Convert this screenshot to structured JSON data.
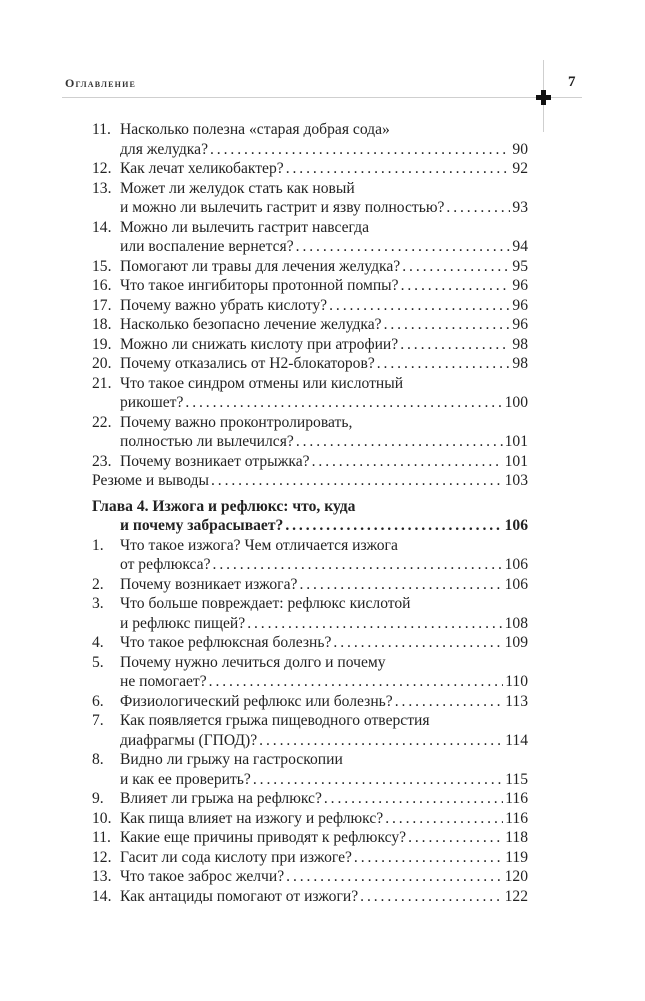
{
  "header": {
    "running_title": "Оглавление",
    "page_number": "7"
  },
  "toc": [
    {
      "num": "11.",
      "lines": [
        "Насколько полезна «старая добрая сода»",
        "для желудка?"
      ],
      "page": "90"
    },
    {
      "num": "12.",
      "lines": [
        "Как лечат хеликобактер?"
      ],
      "page": "92"
    },
    {
      "num": "13.",
      "lines": [
        "Может ли желудок стать как новый",
        "и можно ли вылечить гастрит и язву полностью?"
      ],
      "page": "93"
    },
    {
      "num": "14.",
      "lines": [
        "Можно ли вылечить гастрит навсегда",
        "или воспаление вернется?"
      ],
      "page": "94"
    },
    {
      "num": "15.",
      "lines": [
        "Помогают ли травы для лечения желудка?"
      ],
      "page": "95"
    },
    {
      "num": "16.",
      "lines": [
        "Что такое ингибиторы протонной помпы?"
      ],
      "page": "96"
    },
    {
      "num": "17.",
      "lines": [
        "Почему важно убрать кислоту?"
      ],
      "page": "96"
    },
    {
      "num": "18.",
      "lines": [
        "Насколько безопасно лечение желудка?"
      ],
      "page": "96"
    },
    {
      "num": "19.",
      "lines": [
        "Можно ли снижать кислоту при атрофии?"
      ],
      "page": "98"
    },
    {
      "num": "20.",
      "lines": [
        "Почему отказались от Н2-блокаторов?"
      ],
      "page": "98"
    },
    {
      "num": "21.",
      "lines": [
        "Что такое синдром отмены или кислотный",
        "рикошет?"
      ],
      "page": "100"
    },
    {
      "num": "22.",
      "lines": [
        "Почему важно проконтролировать,",
        "полностью ли вылечился?"
      ],
      "page": "101"
    },
    {
      "num": "23.",
      "lines": [
        "Почему возникает отрыжка?"
      ],
      "page": "101"
    },
    {
      "num": "",
      "lines": [
        "Резюме и выводы"
      ],
      "page": "103"
    },
    {
      "num": "",
      "chapter": true,
      "lines": [
        "Глава 4. Изжога и рефлюкс: что, куда",
        "и почему забрасывает?"
      ],
      "page": "106"
    },
    {
      "num": "1.",
      "lines": [
        "Что такое изжога? Чем отличается изжога",
        "от рефлюкса?"
      ],
      "page": "106"
    },
    {
      "num": "2.",
      "lines": [
        "Почему возникает изжога?"
      ],
      "page": "106"
    },
    {
      "num": "3.",
      "lines": [
        "Что больше повреждает: рефлюкс кислотой",
        "и рефлюкс пищей?"
      ],
      "page": "108"
    },
    {
      "num": "4.",
      "lines": [
        "Что такое рефлюксная болезнь?"
      ],
      "page": "109"
    },
    {
      "num": "5.",
      "lines": [
        "Почему нужно лечиться долго и почему",
        "не помогает?"
      ],
      "page": "110"
    },
    {
      "num": "6.",
      "lines": [
        "Физиологический рефлюкс или болезнь?"
      ],
      "page": "113"
    },
    {
      "num": "7.",
      "lines": [
        "Как появляется грыжа пищеводного отверстия",
        "диафрагмы (ГПОД)?"
      ],
      "page": "114"
    },
    {
      "num": "8.",
      "lines": [
        "Видно ли грыжу на гастроскопии",
        "и как ее проверить?"
      ],
      "page": "115"
    },
    {
      "num": "9.",
      "lines": [
        "Влияет ли грыжа на рефлюкс?"
      ],
      "page": "116"
    },
    {
      "num": "10.",
      "lines": [
        "Как пища влияет на изжогу и рефлюкс?"
      ],
      "page": "116"
    },
    {
      "num": "11.",
      "lines": [
        "Какие еще причины приводят к рефлюксу?"
      ],
      "page": "118"
    },
    {
      "num": "12.",
      "lines": [
        "Гасит ли сода кислоту при изжоге?"
      ],
      "page": "119"
    },
    {
      "num": "13.",
      "lines": [
        "Что такое заброс желчи?"
      ],
      "page": "120"
    },
    {
      "num": "14.",
      "lines": [
        "Как антациды помогают от изжоги?"
      ],
      "page": "122"
    }
  ]
}
